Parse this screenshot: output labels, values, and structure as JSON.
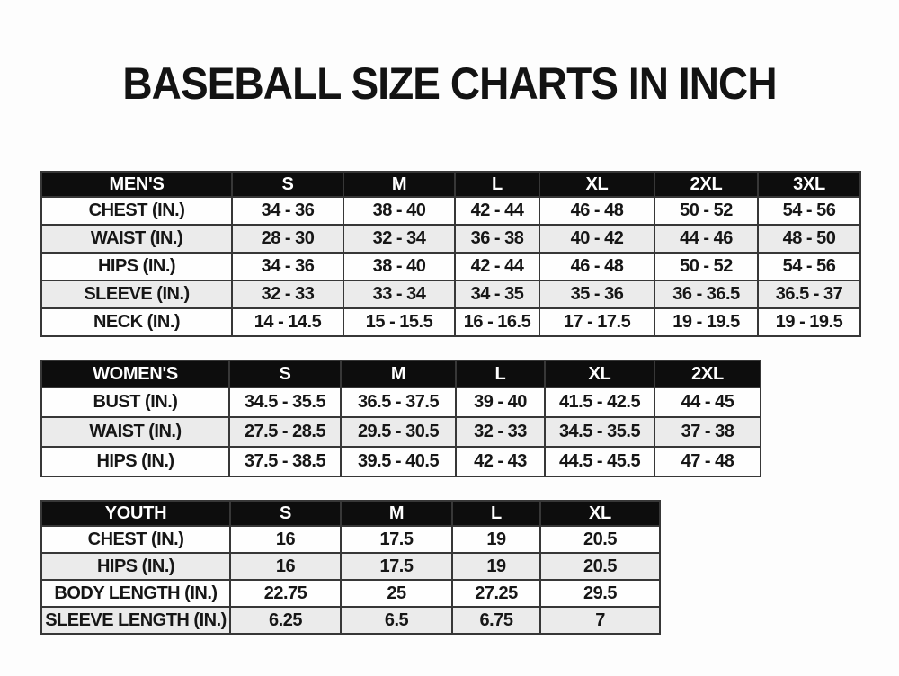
{
  "page": {
    "title": "BASEBALL SIZE CHARTS IN INCH"
  },
  "colors": {
    "header_bg": "#0d0d0d",
    "header_text": "#ffffff",
    "row_bg": "#fefefe",
    "row_alt_bg": "#ebebeb",
    "border": "#373737",
    "title_text": "#131313",
    "page_bg": "#fdfdfd"
  },
  "chart_data": [
    {
      "type": "table",
      "title": "MEN'S",
      "unit": "inch",
      "columns": [
        "MEN'S",
        "S",
        "M",
        "L",
        "XL",
        "2XL",
        "3XL"
      ],
      "rows": [
        {
          "label": "CHEST (IN.)",
          "values": [
            "34 - 36",
            "38 - 40",
            "42 - 44",
            "46 - 48",
            "50 - 52",
            "54 - 56"
          ]
        },
        {
          "label": "WAIST (IN.)",
          "values": [
            "28 - 30",
            "32 - 34",
            "36 - 38",
            "40 - 42",
            "44 - 46",
            "48 - 50"
          ]
        },
        {
          "label": "HIPS (IN.)",
          "values": [
            "34 - 36",
            "38 - 40",
            "42 - 44",
            "46 - 48",
            "50 - 52",
            "54 - 56"
          ]
        },
        {
          "label": "SLEEVE (IN.)",
          "values": [
            "32 - 33",
            "33 - 34",
            "34 - 35",
            "35 - 36",
            "36 - 36.5",
            "36.5 - 37"
          ]
        },
        {
          "label": "NECK (IN.)",
          "values": [
            "14 - 14.5",
            "15 - 15.5",
            "16 - 16.5",
            "17 - 17.5",
            "19 - 19.5",
            "19 - 19.5"
          ]
        }
      ]
    },
    {
      "type": "table",
      "title": "WOMEN'S",
      "unit": "inch",
      "columns": [
        "WOMEN'S",
        "S",
        "M",
        "L",
        "XL",
        "2XL"
      ],
      "rows": [
        {
          "label": "BUST (IN.)",
          "values": [
            "34.5 - 35.5",
            "36.5 - 37.5",
            "39 - 40",
            "41.5 - 42.5",
            "44 - 45"
          ]
        },
        {
          "label": "WAIST (IN.)",
          "values": [
            "27.5 - 28.5",
            "29.5 - 30.5",
            "32 - 33",
            "34.5 - 35.5",
            "37 - 38"
          ]
        },
        {
          "label": "HIPS (IN.)",
          "values": [
            "37.5 - 38.5",
            "39.5 - 40.5",
            "42 - 43",
            "44.5 - 45.5",
            "47 - 48"
          ]
        }
      ]
    },
    {
      "type": "table",
      "title": "YOUTH",
      "unit": "inch",
      "columns": [
        "YOUTH",
        "S",
        "M",
        "L",
        "XL"
      ],
      "rows": [
        {
          "label": "CHEST (IN.)",
          "values": [
            "16",
            "17.5",
            "19",
            "20.5"
          ]
        },
        {
          "label": "HIPS (IN.)",
          "values": [
            "16",
            "17.5",
            "19",
            "20.5"
          ]
        },
        {
          "label": "BODY LENGTH (IN.)",
          "values": [
            "22.75",
            "25",
            "27.25",
            "29.5"
          ]
        },
        {
          "label": "SLEEVE LENGTH (IN.)",
          "values": [
            "6.25",
            "6.5",
            "6.75",
            "7"
          ]
        }
      ]
    }
  ]
}
